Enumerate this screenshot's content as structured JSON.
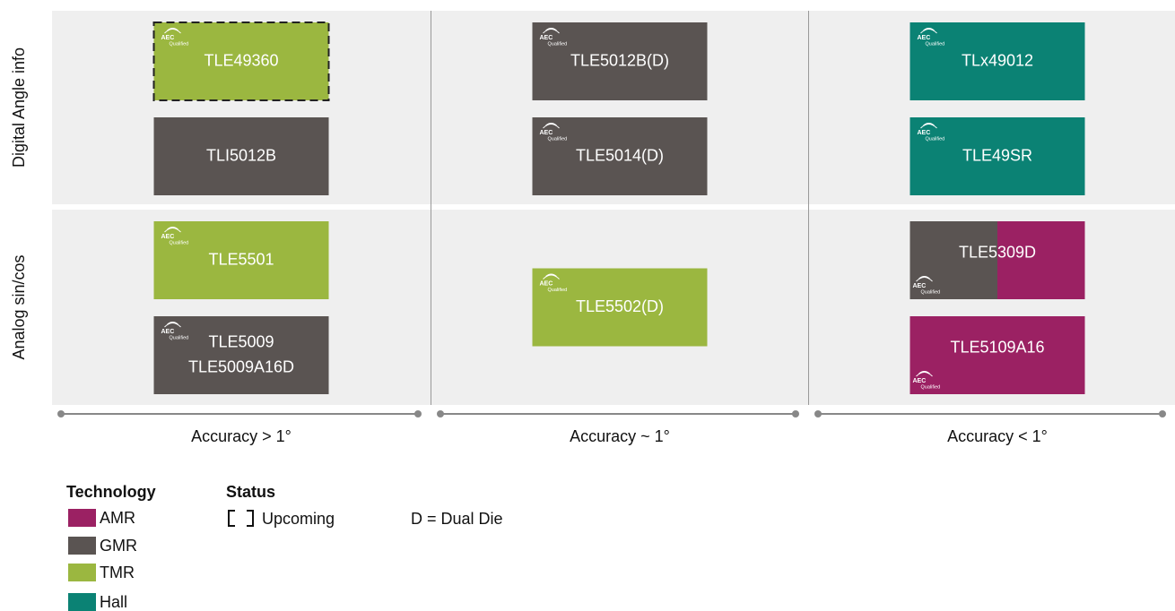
{
  "rows": [
    "Digital Angle info",
    "Analog sin/cos"
  ],
  "columns": [
    "Accuracy > 1°",
    "Accuracy ~ 1°",
    "Accuracy < 1°"
  ],
  "technologies": [
    {
      "name": "AMR",
      "color": "#9b2163"
    },
    {
      "name": "GMR",
      "color": "#5a5452"
    },
    {
      "name": "TMR",
      "color": "#9bb740"
    },
    {
      "name": "Hall",
      "color": "#0b8274"
    }
  ],
  "aec_logo": {
    "mark": "AEC",
    "caption": "Qualified"
  },
  "cells": [
    [
      [
        {
          "lines": [
            "TLE49360"
          ],
          "technology": [
            "TMR"
          ],
          "upcoming": true,
          "aec": "top"
        },
        {
          "lines": [
            "TLI5012B"
          ],
          "technology": [
            "GMR"
          ],
          "upcoming": false,
          "aec": "none"
        }
      ],
      [
        {
          "lines": [
            "TLE5012B(D)"
          ],
          "technology": [
            "GMR"
          ],
          "upcoming": false,
          "aec": "top"
        },
        {
          "lines": [
            "TLE5014(D)"
          ],
          "technology": [
            "GMR"
          ],
          "upcoming": false,
          "aec": "top"
        }
      ],
      [
        {
          "lines": [
            "TLx49012"
          ],
          "technology": [
            "Hall"
          ],
          "upcoming": false,
          "aec": "top"
        },
        {
          "lines": [
            "TLE49SR"
          ],
          "technology": [
            "Hall"
          ],
          "upcoming": false,
          "aec": "top"
        }
      ]
    ],
    [
      [
        {
          "lines": [
            "TLE5501"
          ],
          "technology": [
            "TMR"
          ],
          "upcoming": false,
          "aec": "top"
        },
        {
          "lines": [
            "TLE5009",
            "TLE5009A16D"
          ],
          "technology": [
            "GMR"
          ],
          "upcoming": false,
          "aec": "top"
        }
      ],
      [
        {
          "lines": [
            "TLE5502(D)"
          ],
          "technology": [
            "TMR"
          ],
          "upcoming": false,
          "aec": "top"
        }
      ],
      [
        {
          "lines": [
            "TLE5309D"
          ],
          "technology": [
            "GMR",
            "AMR"
          ],
          "upcoming": false,
          "aec": "bottom"
        },
        {
          "lines": [
            "TLE5109A16"
          ],
          "technology": [
            "AMR"
          ],
          "upcoming": false,
          "aec": "bottom"
        }
      ]
    ]
  ],
  "legend": {
    "technology_title": "Technology",
    "status_title": "Status",
    "upcoming": "Upcoming",
    "note": "D = Dual Die"
  }
}
